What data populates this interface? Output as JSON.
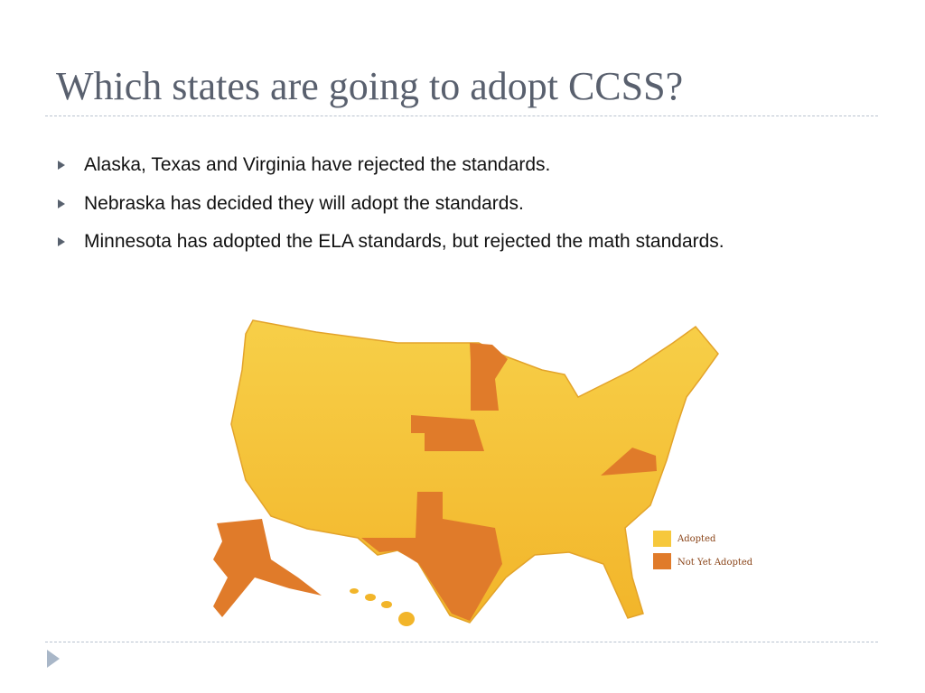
{
  "slide": {
    "title": "Which states are going to adopt CCSS?",
    "bullets": [
      "Alaska, Texas and Virginia have rejected the standards.",
      "Nebraska has decided they will adopt the standards.",
      "Minnesota has adopted the ELA standards, but rejected the math standards."
    ],
    "legend": [
      "Adopted",
      "Not Yet Adopted"
    ]
  }
}
